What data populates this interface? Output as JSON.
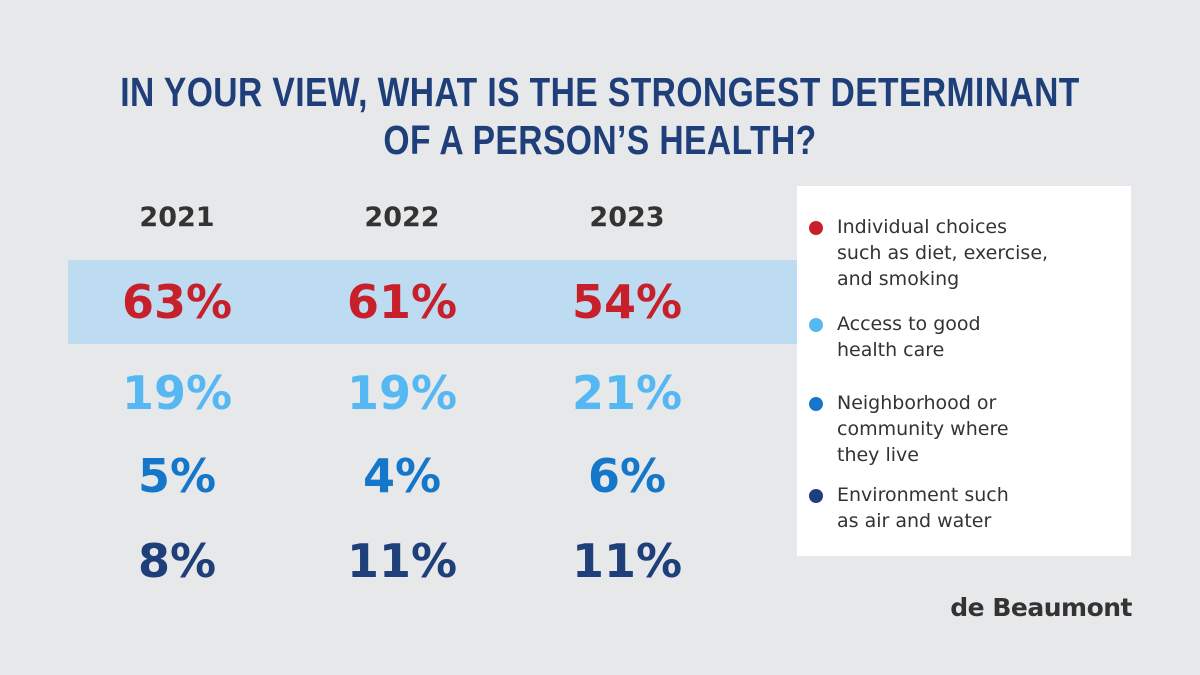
{
  "title": {
    "line1": "IN YOUR VIEW, WHAT IS THE STRONGEST DETERMINANT",
    "line2": "OF A PERSON’S HEALTH?"
  },
  "brand": "de Beaumont",
  "colors": {
    "background": "#e7e8e9",
    "highlight": "#bddcf1",
    "title": "#1f3f7a",
    "individual_choices": "#c8202a",
    "access_to_care": "#55b8f3",
    "neighborhood": "#1577c9",
    "environment": "#1f3f7a"
  },
  "chart_data": {
    "type": "table",
    "title": "IN YOUR VIEW, WHAT IS THE STRONGEST DETERMINANT OF A PERSON’S HEALTH?",
    "categories": [
      "2021",
      "2022",
      "2023"
    ],
    "series": [
      {
        "name": "Individual choices such as diet, exercise, and smoking",
        "color": "#c8202a",
        "values": [
          63,
          61,
          54
        ],
        "labels": [
          "63%",
          "61%",
          "54%"
        ],
        "highlighted": true
      },
      {
        "name": "Access to good health care",
        "color": "#55b8f3",
        "values": [
          19,
          19,
          21
        ],
        "labels": [
          "19%",
          "19%",
          "21%"
        ]
      },
      {
        "name": "Neighborhood or community where they live",
        "color": "#1577c9",
        "values": [
          5,
          4,
          6
        ],
        "labels": [
          "5%",
          "4%",
          "6%"
        ]
      },
      {
        "name": "Environment such as air and water",
        "color": "#1f3f7a",
        "values": [
          8,
          11,
          11
        ],
        "labels": [
          "8%",
          "11%",
          "11%"
        ]
      }
    ],
    "legend": {
      "placement": "right",
      "items": [
        {
          "lines": [
            "Individual choices",
            "such as diet, exercise,",
            "and smoking"
          ],
          "color": "#c8202a"
        },
        {
          "lines": [
            "Access to good",
            "health care"
          ],
          "color": "#55b8f3"
        },
        {
          "lines": [
            "Neighborhood or",
            "community where",
            "they live"
          ],
          "color": "#1577c9"
        },
        {
          "lines": [
            "Environment such",
            "as air and water"
          ],
          "color": "#1f3f7a"
        }
      ]
    }
  }
}
